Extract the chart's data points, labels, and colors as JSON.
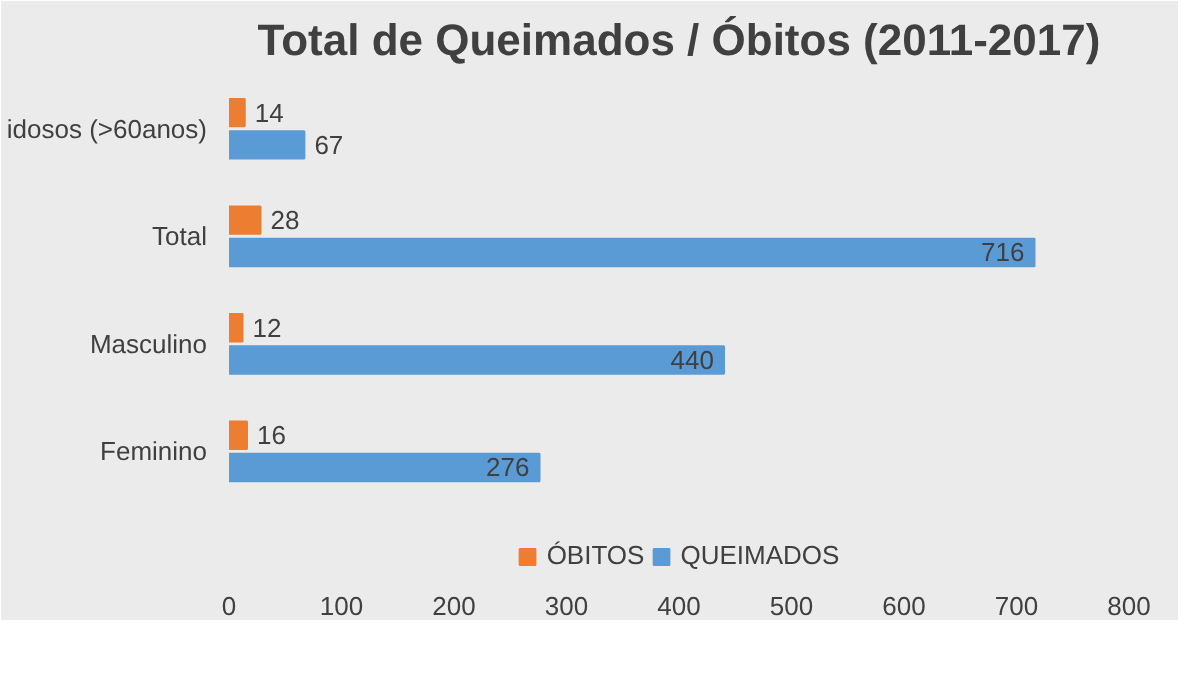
{
  "chart_data": {
    "type": "bar",
    "orientation": "horizontal",
    "title": "Total de Queimados / Óbitos (2011-2017)",
    "categories": [
      "idosos (>60anos)",
      "Total",
      "Masculino",
      "Feminino"
    ],
    "series": [
      {
        "name": "ÓBITOS",
        "color": "#ed7d31",
        "values": [
          14,
          28,
          12,
          16
        ]
      },
      {
        "name": "QUEIMADOS",
        "color": "#5b9bd5",
        "values": [
          67,
          716,
          440,
          276
        ]
      }
    ],
    "xlim": [
      0,
      800
    ],
    "xticks": [
      0,
      100,
      200,
      300,
      400,
      500,
      600,
      700,
      800
    ],
    "data_labels": true,
    "legend": "bottom"
  }
}
